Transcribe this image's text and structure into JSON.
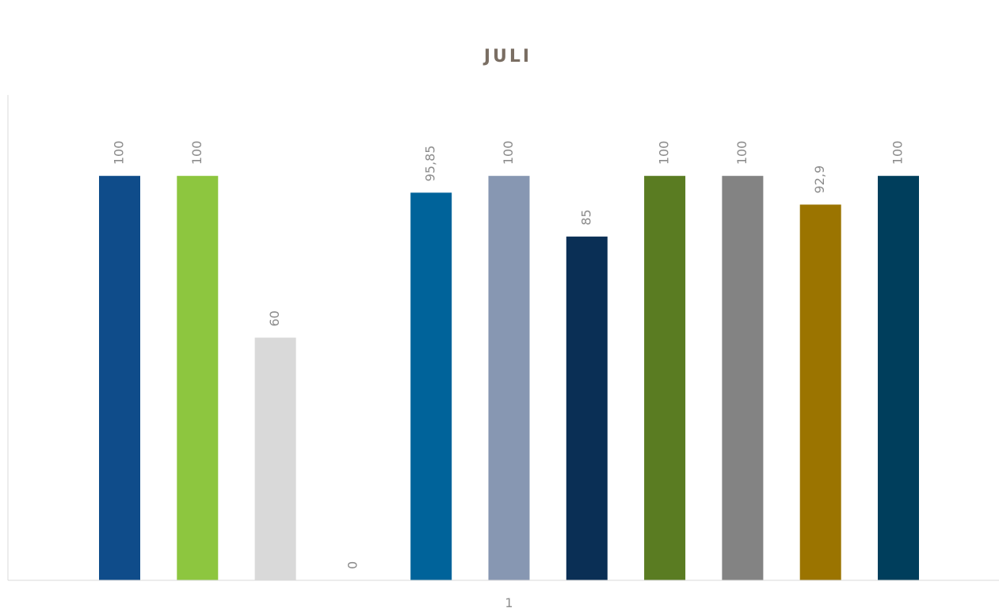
{
  "chart_data": {
    "type": "bar",
    "title": "JULI",
    "categories": [
      "1"
    ],
    "ylim": [
      0,
      120
    ],
    "series": [
      {
        "color": "#0f4c8a",
        "values": [
          100
        ]
      },
      {
        "color": "#8dc63f",
        "values": [
          100
        ]
      },
      {
        "color": "#d9d9d9",
        "values": [
          60
        ]
      },
      {
        "color": "#1f6f8b",
        "values": [
          0
        ]
      },
      {
        "color": "#00639a",
        "values": [
          95.85
        ],
        "value_labels": [
          "95,85"
        ]
      },
      {
        "color": "#8797b2",
        "values": [
          100
        ]
      },
      {
        "color": "#0a2f55",
        "values": [
          85
        ]
      },
      {
        "color": "#5a7c22",
        "values": [
          100
        ]
      },
      {
        "color": "#838383",
        "values": [
          100
        ]
      },
      {
        "color": "#9b7400",
        "values": [
          92.9
        ],
        "value_labels": [
          "92,9"
        ]
      },
      {
        "color": "#003e5c",
        "values": [
          100
        ]
      }
    ]
  }
}
